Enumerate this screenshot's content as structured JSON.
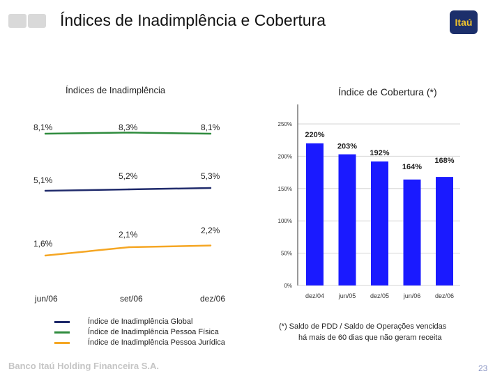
{
  "header": {
    "title": "Índices de Inadimplência e Cobertura",
    "logo_text": "Itaú"
  },
  "footer": {
    "company": "Banco Itaú Holding Financeira S.A.",
    "page_number": "23"
  },
  "footnote": {
    "line1": "(*) Saldo de PDD / Saldo de Operações vencidas",
    "line2": "há mais de 60 dias que não geram receita"
  },
  "colors": {
    "global": "#1f2a6b",
    "pf": "#2e8b3d",
    "pj": "#f5a623",
    "bars": "#1a1aff"
  },
  "chart_data": [
    {
      "type": "line",
      "title": "Índices de Inadimplência",
      "categories": [
        "jun/06",
        "set/06",
        "dez/06"
      ],
      "series": [
        {
          "name": "Índice de Inadimplência Pessoa Física",
          "values": [
            8.1,
            8.3,
            8.1
          ],
          "labels": [
            "8,1%",
            "8,3%",
            "8,1%"
          ]
        },
        {
          "name": "Índice de Inadimplência Global",
          "values": [
            5.1,
            5.2,
            5.3
          ],
          "labels": [
            "5,1%",
            "5,2%",
            "5,3%"
          ]
        },
        {
          "name": "Índice de Inadimplência Pessoa Jurídica",
          "values": [
            1.6,
            2.1,
            2.2
          ],
          "labels": [
            "1,6%",
            "2,1%",
            "2,2%"
          ]
        }
      ],
      "legend_order": [
        "Índice de Inadimplência Global",
        "Índice de Inadimplência Pessoa Física",
        "Índice de Inadimplência Pessoa Jurídica"
      ],
      "grid": false,
      "legend_position": "bottom"
    },
    {
      "type": "bar",
      "title": "Índice de Cobertura (*)",
      "categories": [
        "dez/04",
        "jun/05",
        "dez/05",
        "jun/06",
        "dez/06"
      ],
      "values": [
        220,
        203,
        192,
        164,
        168
      ],
      "labels": [
        "220%",
        "203%",
        "192%",
        "164%",
        "168%"
      ],
      "ylim": [
        0,
        250
      ],
      "yticks": [
        "0%",
        "50%",
        "100%",
        "150%",
        "200%",
        "250%"
      ],
      "grid": true
    }
  ]
}
